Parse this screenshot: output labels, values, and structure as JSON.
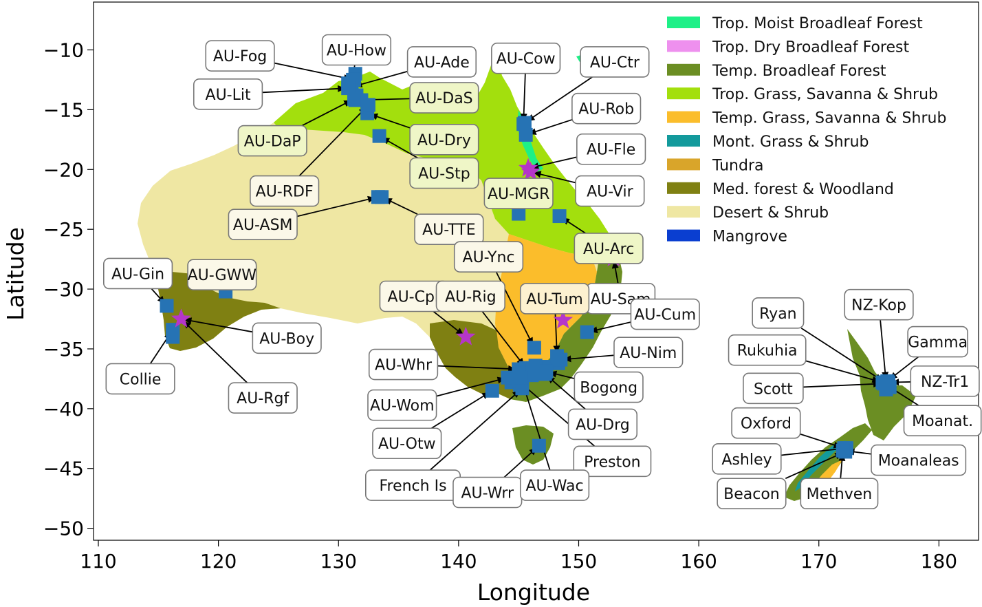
{
  "axes": {
    "xlabel": "Longitude",
    "ylabel": "Latitude",
    "xlim": [
      109.6,
      183.3
    ],
    "ylim": [
      -51.0,
      -6.0
    ],
    "xticks": [
      110,
      120,
      130,
      140,
      150,
      160,
      170,
      180
    ],
    "yticks": [
      -10,
      -15,
      -20,
      -25,
      -30,
      -35,
      -40,
      -45,
      -50
    ],
    "xtick_labels": [
      "110",
      "120",
      "130",
      "140",
      "150",
      "160",
      "170",
      "180"
    ],
    "ytick_labels": [
      "−10",
      "−15",
      "−20",
      "−25",
      "−30",
      "−35",
      "−40",
      "−45",
      "−50"
    ]
  },
  "legend": {
    "placement": "top-right",
    "items": [
      {
        "label": "Trop. Moist Broadleaf Forest",
        "color": "#1ef087"
      },
      {
        "label": "Trop. Dry Broadleaf Forest",
        "color": "#ee90ee"
      },
      {
        "label": "Temp. Broadleaf Forest",
        "color": "#6b8e23"
      },
      {
        "label": "Trop. Grass, Savanna & Shrub",
        "color": "#a3df0d"
      },
      {
        "label": "Temp. Grass, Savanna & Shrub",
        "color": "#fbbd2b"
      },
      {
        "label": "Mont. Grass & Shrub",
        "color": "#139a9c"
      },
      {
        "label": "Tundra",
        "color": "#d9a52a"
      },
      {
        "label": "Med. forest & Woodland",
        "color": "#7f8012"
      },
      {
        "label": "Desert & Shrub",
        "color": "#efe7a3"
      },
      {
        "label": "Mangrove",
        "color": "#0a3ed0"
      }
    ]
  },
  "marker_colors": {
    "site_square": "#2673b4",
    "star": "#b536c9"
  },
  "chart_data": {
    "type": "scatter",
    "title": "",
    "xlabel": "Longitude",
    "ylabel": "Latitude",
    "xlim": [
      110,
      183
    ],
    "ylim": [
      -50,
      -7
    ],
    "grid": false,
    "legend_placement": "top-right",
    "sites": [
      {
        "name": "AU-Fog",
        "lon": 131.3,
        "lat": -12.5,
        "marker": "square",
        "tx": 121.8,
        "ty": -10.5,
        "face": "#ffffff"
      },
      {
        "name": "AU-How",
        "lon": 131.2,
        "lat": -12.5,
        "marker": "square",
        "tx": 131.5,
        "ty": -10.0,
        "face": "#ffffff"
      },
      {
        "name": "AU-Ade",
        "lon": 131.1,
        "lat": -13.1,
        "marker": "square",
        "tx": 138.6,
        "ty": -11.0,
        "face": "#ffffff"
      },
      {
        "name": "AU-Cow",
        "lon": 145.4,
        "lat": -16.2,
        "marker": "square",
        "tx": 145.6,
        "ty": -10.7,
        "face": "#ffffff"
      },
      {
        "name": "AU-Ctr",
        "lon": 145.5,
        "lat": -16.1,
        "marker": "square",
        "tx": 153.0,
        "ty": -11.0,
        "face": "#ffffff"
      },
      {
        "name": "AU-Lit",
        "lon": 130.8,
        "lat": -13.2,
        "marker": "square",
        "tx": 120.8,
        "ty": -13.7,
        "face": "#ffffff"
      },
      {
        "name": "AU-DaS",
        "lon": 131.4,
        "lat": -14.2,
        "marker": "square",
        "tx": 138.8,
        "ty": -14.0,
        "face": "#eff6c7"
      },
      {
        "name": "AU-Rob",
        "lon": 145.6,
        "lat": -17.1,
        "marker": "square",
        "tx": 152.3,
        "ty": -14.9,
        "face": "#ffffff"
      },
      {
        "name": "AU-DaP",
        "lon": 131.3,
        "lat": -14.1,
        "marker": "square",
        "tx": 124.5,
        "ty": -17.6,
        "face": "#eff6c7"
      },
      {
        "name": "AU-Dry",
        "lon": 132.4,
        "lat": -15.3,
        "marker": "square",
        "tx": 138.8,
        "ty": -17.5,
        "face": "#eff6c7"
      },
      {
        "name": "AU-Stp",
        "lon": 133.4,
        "lat": -17.2,
        "marker": "square",
        "tx": 138.8,
        "ty": -20.3,
        "face": "#eff6c7"
      },
      {
        "name": "AU-Fle",
        "lon": 145.8,
        "lat": -19.9,
        "marker": "star",
        "tx": 152.7,
        "ty": -18.3,
        "face": "#ffffff"
      },
      {
        "name": "AU-RDF",
        "lon": 132.5,
        "lat": -14.6,
        "marker": "square",
        "tx": 125.5,
        "ty": -21.8,
        "face": "#fbf8e8"
      },
      {
        "name": "AU-Vir",
        "lon": 146.0,
        "lat": -20.2,
        "marker": "star",
        "tx": 152.6,
        "ty": -21.8,
        "face": "#ffffff"
      },
      {
        "name": "AU-ASM",
        "lon": 133.3,
        "lat": -22.3,
        "marker": "square",
        "tx": 123.7,
        "ty": -24.6,
        "face": "#fbf8e8"
      },
      {
        "name": "AU-TTE",
        "lon": 133.6,
        "lat": -22.3,
        "marker": "square",
        "tx": 139.2,
        "ty": -25.0,
        "face": "#fbf8e8"
      },
      {
        "name": "AU-MGR",
        "lon": 145.0,
        "lat": -23.7,
        "marker": "square",
        "tx": 145.0,
        "ty": -22.0,
        "face": "#eff6c7"
      },
      {
        "name": "AU-Arc",
        "lon": 148.4,
        "lat": -23.9,
        "marker": "square",
        "tx": 152.5,
        "ty": -26.6,
        "face": "#eff6c7"
      },
      {
        "name": "AU-Gin",
        "lon": 115.7,
        "lat": -31.4,
        "marker": "square",
        "tx": 113.3,
        "ty": -28.7,
        "face": "#ffffff"
      },
      {
        "name": "AU-GWW",
        "lon": 120.6,
        "lat": -30.2,
        "marker": "square",
        "tx": 120.3,
        "ty": -28.8,
        "face": "#fbf8e8"
      },
      {
        "name": "AU-Ync",
        "lon": 146.3,
        "lat": -34.9,
        "marker": "square",
        "tx": 142.5,
        "ty": -27.3,
        "face": "#fbf8e8"
      },
      {
        "name": "AU-Sam",
        "lon": 152.9,
        "lat": -27.4,
        "marker": "star",
        "tx": 153.5,
        "ty": -30.8,
        "face": "#ffffff"
      },
      {
        "name": "AU-Cpr",
        "lon": 140.6,
        "lat": -34.0,
        "marker": "star",
        "tx": 136.3,
        "ty": -30.6,
        "face": "#fbf8e8"
      },
      {
        "name": "AU-Rig",
        "lon": 145.6,
        "lat": -36.6,
        "marker": "square",
        "tx": 141.0,
        "ty": -30.6,
        "face": "#fbf8e8"
      },
      {
        "name": "AU-Tum",
        "lon": 148.2,
        "lat": -35.6,
        "marker": "square",
        "tx": 148.0,
        "ty": -30.8,
        "face": "#fdf1d0"
      },
      {
        "name": "AU-Cum",
        "lon": 150.7,
        "lat": -33.6,
        "marker": "square",
        "tx": 157.2,
        "ty": -32.1,
        "face": "#ffffff"
      },
      {
        "name": "AU-Boy",
        "lon": 116.9,
        "lat": -32.5,
        "marker": "star",
        "tx": 125.7,
        "ty": -34.1,
        "face": "#ffffff"
      },
      {
        "name": "AU-Nim",
        "lon": 148.5,
        "lat": -35.9,
        "marker": "square",
        "tx": 155.8,
        "ty": -35.3,
        "face": "#ffffff"
      },
      {
        "name": "AU-Whr",
        "lon": 145.0,
        "lat": -36.7,
        "marker": "square",
        "tx": 135.4,
        "ty": -36.3,
        "face": "#ffffff"
      },
      {
        "name": "Collie",
        "lon": 116.2,
        "lat": -33.4,
        "marker": "square",
        "tx": 113.5,
        "ty": -37.5,
        "face": "#ffffff"
      },
      {
        "name": "Bogong",
        "lon": 147.3,
        "lat": -36.9,
        "marker": "square",
        "tx": 152.5,
        "ty": -38.2,
        "face": "#ffffff"
      },
      {
        "name": "AU-Rgf",
        "lon": 116.9,
        "lat": -32.5,
        "marker": "star",
        "tx": 123.7,
        "ty": -39.1,
        "face": "#ffffff"
      },
      {
        "name": "AU-Wom",
        "lon": 144.1,
        "lat": -37.4,
        "marker": "square",
        "tx": 135.3,
        "ty": -39.7,
        "face": "#ffffff"
      },
      {
        "name": "AU-Drg",
        "lon": 147.2,
        "lat": -37.1,
        "marker": "square",
        "tx": 152.0,
        "ty": -41.3,
        "face": "#ffffff"
      },
      {
        "name": "AU-Otw",
        "lon": 142.8,
        "lat": -38.5,
        "marker": "square",
        "tx": 135.7,
        "ty": -42.9,
        "face": "#ffffff"
      },
      {
        "name": "Preston",
        "lon": 145.0,
        "lat": -37.7,
        "marker": "square",
        "tx": 152.8,
        "ty": -44.4,
        "face": "#ffffff"
      },
      {
        "name": "French Is",
        "lon": 145.3,
        "lat": -38.3,
        "marker": "square",
        "tx": 136.2,
        "ty": -46.4,
        "face": "#ffffff"
      },
      {
        "name": "AU-Wrr",
        "lon": 146.7,
        "lat": -43.1,
        "marker": "square",
        "tx": 142.4,
        "ty": -47.0,
        "face": "#ffffff"
      },
      {
        "name": "AU-Wac",
        "lon": 145.2,
        "lat": -37.4,
        "marker": "square",
        "tx": 148.0,
        "ty": -46.4,
        "face": "#ffffff"
      },
      {
        "name": "Ryan",
        "lon": 175.5,
        "lat": -37.8,
        "marker": "square",
        "tx": 166.6,
        "ty": -32.0,
        "face": "#ffffff"
      },
      {
        "name": "NZ-Kop",
        "lon": 175.6,
        "lat": -37.8,
        "marker": "square",
        "tx": 175.0,
        "ty": -31.3,
        "face": "#ffffff"
      },
      {
        "name": "Gamma",
        "lon": 175.7,
        "lat": -37.7,
        "marker": "square",
        "tx": 179.9,
        "ty": -34.4,
        "face": "#ffffff"
      },
      {
        "name": "Rukuhia",
        "lon": 175.3,
        "lat": -37.8,
        "marker": "square",
        "tx": 165.7,
        "ty": -35.1,
        "face": "#ffffff"
      },
      {
        "name": "NZ-Tr1",
        "lon": 175.8,
        "lat": -37.8,
        "marker": "square",
        "tx": 180.5,
        "ty": -37.7,
        "face": "#ffffff"
      },
      {
        "name": "Scott",
        "lon": 175.4,
        "lat": -37.9,
        "marker": "square",
        "tx": 166.2,
        "ty": -38.3,
        "face": "#ffffff"
      },
      {
        "name": "Moanat.",
        "lon": 175.6,
        "lat": -38.0,
        "marker": "square",
        "tx": 180.3,
        "ty": -41.0,
        "face": "#ffffff"
      },
      {
        "name": "Oxford",
        "lon": 172.1,
        "lat": -43.3,
        "marker": "square",
        "tx": 165.6,
        "ty": -41.2,
        "face": "#ffffff"
      },
      {
        "name": "Ashley",
        "lon": 172.3,
        "lat": -43.3,
        "marker": "square",
        "tx": 164.0,
        "ty": -44.2,
        "face": "#ffffff"
      },
      {
        "name": "Moanaleas",
        "lon": 172.1,
        "lat": -43.5,
        "marker": "square",
        "tx": 178.3,
        "ty": -44.3,
        "face": "#ffffff"
      },
      {
        "name": "Beacon",
        "lon": 172.2,
        "lat": -43.6,
        "marker": "square",
        "tx": 164.4,
        "ty": -47.1,
        "face": "#ffffff"
      },
      {
        "name": "Methven",
        "lon": 172.0,
        "lat": -43.5,
        "marker": "square",
        "tx": 171.7,
        "ty": -47.1,
        "face": "#ffffff"
      }
    ],
    "extra_stars": [
      {
        "lon": 148.7,
        "lat": -32.6
      }
    ],
    "extra_squares": [
      {
        "lon": 131.4,
        "lat": -12.0
      },
      {
        "lon": 130.8,
        "lat": -12.8
      },
      {
        "lon": 131.9,
        "lat": -14.2
      },
      {
        "lon": 131.5,
        "lat": -13.8
      },
      {
        "lon": 116.2,
        "lat": -34.0
      },
      {
        "lon": 145.8,
        "lat": -36.8
      },
      {
        "lon": 144.4,
        "lat": -37.8
      },
      {
        "lon": 145.1,
        "lat": -38.0
      },
      {
        "lon": 146.1,
        "lat": -37.2
      },
      {
        "lon": 147.2,
        "lat": -36.5
      },
      {
        "lon": 148.3,
        "lat": -36.2
      },
      {
        "lon": 146.4,
        "lat": -36.4
      },
      {
        "lon": 175.9,
        "lat": -38.2
      },
      {
        "lon": 175.6,
        "lat": -38.4
      }
    ]
  }
}
